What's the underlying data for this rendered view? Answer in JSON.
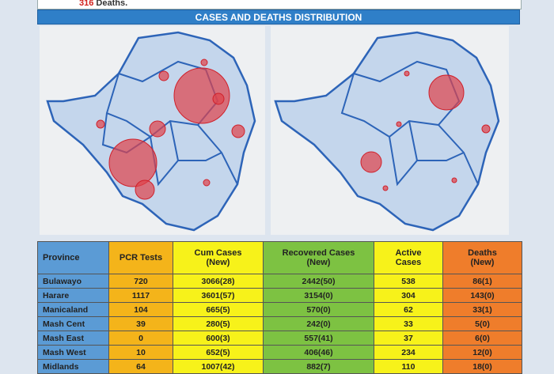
{
  "report_header": {
    "deaths_count": "316",
    "deaths_text": "Deaths."
  },
  "section_title": "CASES AND DEATHS DISTRIBUTION",
  "table": {
    "columns": [
      [
        "Province"
      ],
      [
        "PCR Tests"
      ],
      [
        "Cum Cases",
        "(New)"
      ],
      [
        "Recovered Cases",
        "(New)"
      ],
      [
        "Active",
        "Cases"
      ],
      [
        "Deaths",
        "(New)"
      ]
    ],
    "rows": [
      [
        "Bulawayo",
        "720",
        "3066(28)",
        "2442(50)",
        "538",
        "86(1)"
      ],
      [
        "Harare",
        "1117",
        "3601(57)",
        "3154(0)",
        "304",
        "143(0)"
      ],
      [
        "Manicaland",
        "104",
        "665(5)",
        "570(0)",
        "62",
        "33(1)"
      ],
      [
        "Mash Cent",
        "39",
        "280(5)",
        "242(0)",
        "33",
        "5(0)"
      ],
      [
        "Mash East",
        "0",
        "600(3)",
        "557(41)",
        "37",
        "6(0)"
      ],
      [
        "Mash West",
        "10",
        "652(5)",
        "406(46)",
        "234",
        "12(0)"
      ],
      [
        "Midlands",
        "64",
        "1007(42)",
        "882(7)",
        "110",
        "18(0)"
      ]
    ]
  }
}
